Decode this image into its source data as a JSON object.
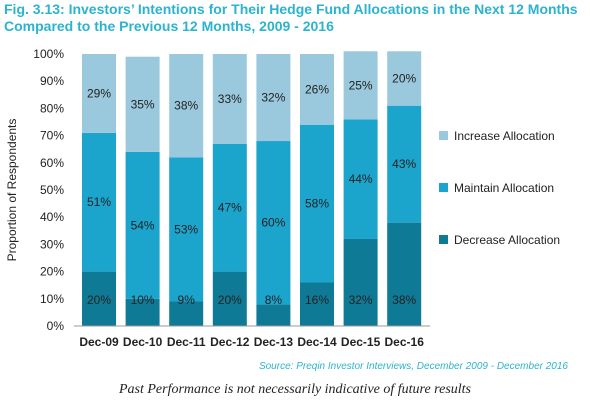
{
  "chart_data": {
    "type": "bar",
    "stacked": true,
    "title": "Fig. 3.13: Investors’ Intentions for Their Hedge Fund Allocations in the Next 12 Months Compared to the Previous 12 Months, 2009 - 2016",
    "ylabel": "Proportion of Respondents",
    "xlabel": "",
    "ylim": [
      0,
      100
    ],
    "yticks": [
      "0%",
      "10%",
      "20%",
      "30%",
      "40%",
      "50%",
      "60%",
      "70%",
      "80%",
      "90%",
      "100%"
    ],
    "categories": [
      "Dec-09",
      "Dec-10",
      "Dec-11",
      "Dec-12",
      "Dec-13",
      "Dec-14",
      "Dec-15",
      "Dec-16"
    ],
    "series": [
      {
        "name": "Decrease Allocation",
        "values": [
          20,
          10,
          9,
          20,
          8,
          16,
          32,
          38
        ],
        "color": "#0f7a96"
      },
      {
        "name": "Maintain Allocation",
        "values": [
          51,
          54,
          53,
          47,
          60,
          58,
          44,
          43
        ],
        "color": "#1ba4cc"
      },
      {
        "name": "Increase Allocation",
        "values": [
          29,
          35,
          38,
          33,
          32,
          26,
          25,
          20
        ],
        "color": "#9ac9dd"
      }
    ],
    "legend_position": "right",
    "grid": false
  },
  "source": "Source: Preqin Investor Interviews, December 2009 - December 2016",
  "disclaimer": "Past Performance is not necessarily indicative of future results"
}
